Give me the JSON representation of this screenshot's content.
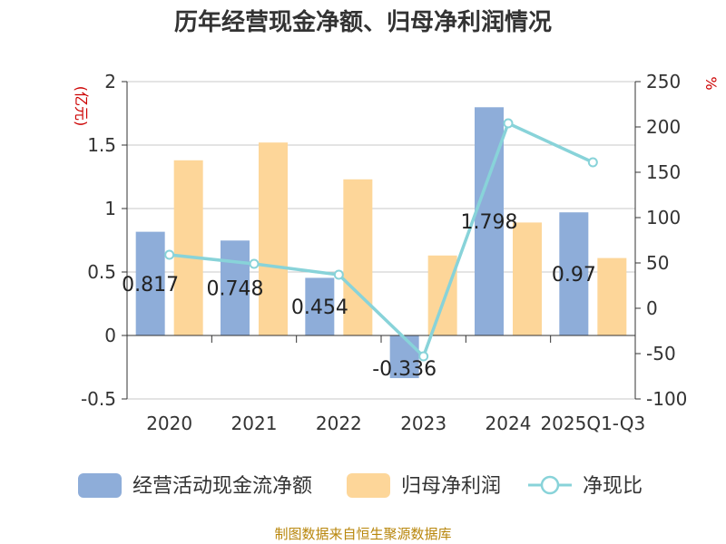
{
  "source_text": "制图数据来自恒生聚源数据库",
  "colors": {
    "cash": "#8eadd9",
    "profit": "#fdd699",
    "ratio": "#88d3d9",
    "axis": "#333333",
    "grid": "#c8c8c8",
    "unit": "#cc0000"
  },
  "chart_data": {
    "type": "bar",
    "title": "历年经营现金净额、归母净利润情况",
    "left_unit": "(亿元)",
    "right_unit": "%",
    "categories": [
      "2020",
      "2021",
      "2022",
      "2023",
      "2024",
      "2025Q1-Q3"
    ],
    "ylim": [
      -0.5,
      2
    ],
    "yticks": [
      -0.5,
      0,
      0.5,
      1,
      1.5,
      2
    ],
    "ytick_labels": [
      "-0.5",
      "0",
      "0.5",
      "1",
      "1.5",
      "2"
    ],
    "y2lim": [
      -100,
      250
    ],
    "y2ticks": [
      -100,
      -50,
      0,
      50,
      100,
      150,
      200,
      250
    ],
    "series": [
      {
        "name": "经营活动现金流净额",
        "kind": "bar",
        "axis": "left",
        "values": [
          0.817,
          0.748,
          0.454,
          -0.336,
          1.798,
          0.97
        ],
        "labels": [
          "0.817",
          "0.748",
          "0.454",
          "-0.336",
          "1.798",
          "0.97"
        ]
      },
      {
        "name": "归母净利润",
        "kind": "bar",
        "axis": "left",
        "values": [
          1.38,
          1.52,
          1.23,
          0.63,
          0.89,
          0.61
        ]
      },
      {
        "name": "净现比",
        "kind": "line",
        "axis": "right",
        "values": [
          59,
          49,
          37,
          -53,
          204,
          161
        ]
      }
    ]
  }
}
